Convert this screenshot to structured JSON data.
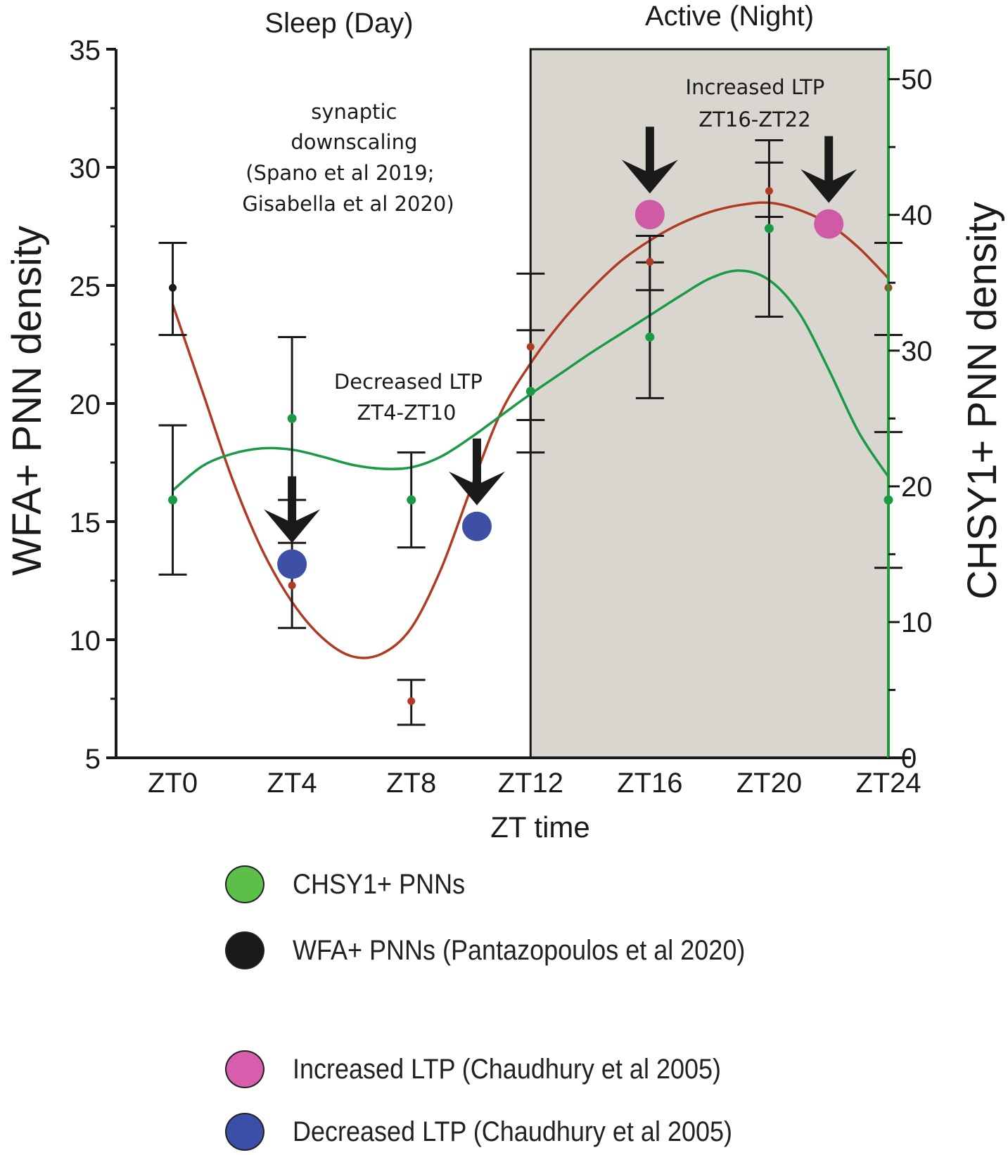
{
  "chart_data": {
    "type": "scatter",
    "period_labels": {
      "day": "Sleep (Day)",
      "night": "Active (Night)"
    },
    "xlabel": "ZT time",
    "ylabel_left": "WFA+ PNN density",
    "ylabel_right": "CHSY1+ PNN density",
    "categories": [
      "ZT0",
      "ZT4",
      "ZT8",
      "ZT12",
      "ZT16",
      "ZT20",
      "ZT24"
    ],
    "x_values": [
      0,
      4,
      8,
      12,
      16,
      20,
      24
    ],
    "xlim": [
      -1.9,
      24
    ],
    "ylim_left": [
      5,
      35
    ],
    "yticks_left": [
      5,
      10,
      15,
      20,
      25,
      30,
      35
    ],
    "ylim_right": [
      0,
      52
    ],
    "yticks_right": [
      0,
      10,
      20,
      30,
      40,
      50
    ],
    "shaded_region": {
      "from": 12,
      "to": 24
    },
    "series": [
      {
        "name": "WFA+ PNNs",
        "axis": "left",
        "color": "#b13a22",
        "points": [
          {
            "x": 0,
            "y": 24.9,
            "lo": 22.9,
            "hi": 26.8
          },
          {
            "x": 4,
            "y": 12.3,
            "lo": 10.5,
            "hi": 14.1
          },
          {
            "x": 8,
            "y": 7.4,
            "lo": 6.4,
            "hi": 8.3
          },
          {
            "x": 12,
            "y": 22.4,
            "lo": 19.3,
            "hi": 25.5
          },
          {
            "x": 16,
            "y": 26.0,
            "lo": 24.8,
            "hi": 27.1
          },
          {
            "x": 20,
            "y": 29.0,
            "lo": 27.9,
            "hi": 30.2
          },
          {
            "x": 24,
            "y": 24.9,
            "lo": 22.9,
            "hi": 26.8
          }
        ],
        "fit_curve": [
          [
            0,
            24.2
          ],
          [
            1,
            20.5
          ],
          [
            2,
            16.8
          ],
          [
            3,
            13.8
          ],
          [
            4,
            11.6
          ],
          [
            5,
            10.1
          ],
          [
            6,
            9.3
          ],
          [
            7,
            9.4
          ],
          [
            8,
            10.5
          ],
          [
            9,
            13.0
          ],
          [
            10,
            16.4
          ],
          [
            11,
            19.6
          ],
          [
            12,
            21.7
          ],
          [
            13,
            23.4
          ],
          [
            14,
            24.8
          ],
          [
            15,
            26.0
          ],
          [
            16,
            26.9
          ],
          [
            17,
            27.6
          ],
          [
            18,
            28.1
          ],
          [
            19,
            28.4
          ],
          [
            20,
            28.5
          ],
          [
            21,
            28.2
          ],
          [
            22,
            27.6
          ],
          [
            23,
            26.6
          ],
          [
            24,
            25.3
          ]
        ]
      },
      {
        "name": "CHSY1+ PNNs",
        "axis": "right",
        "color": "#1a9a46",
        "points": [
          {
            "x": 0,
            "y": 19.0,
            "lo": 13.5,
            "hi": 24.5
          },
          {
            "x": 4,
            "y": 25.0,
            "lo": 19.0,
            "hi": 31.0
          },
          {
            "x": 8,
            "y": 19.0,
            "lo": 15.5,
            "hi": 22.5
          },
          {
            "x": 12,
            "y": 27.0,
            "lo": 22.5,
            "hi": 31.5
          },
          {
            "x": 16,
            "y": 31.0,
            "lo": 26.5,
            "hi": 36.5
          },
          {
            "x": 20,
            "y": 39.0,
            "lo": 32.5,
            "hi": 45.5
          },
          {
            "x": 24,
            "y": 19.0,
            "lo": 14.0,
            "hi": 24.0
          }
        ],
        "fit_curve": [
          [
            0,
            19.7
          ],
          [
            1,
            21.5
          ],
          [
            2,
            22.4
          ],
          [
            3,
            22.8
          ],
          [
            4,
            22.7
          ],
          [
            5,
            22.2
          ],
          [
            6,
            21.6
          ],
          [
            7,
            21.3
          ],
          [
            8,
            21.4
          ],
          [
            9,
            22.2
          ],
          [
            10,
            23.6
          ],
          [
            11,
            25.2
          ],
          [
            12,
            26.8
          ],
          [
            13,
            28.3
          ],
          [
            14,
            29.8
          ],
          [
            15,
            31.2
          ],
          [
            16,
            32.6
          ],
          [
            17,
            34.0
          ],
          [
            18,
            35.3
          ],
          [
            19,
            35.9
          ],
          [
            20,
            35.2
          ],
          [
            21,
            32.8
          ],
          [
            22,
            28.6
          ],
          [
            23,
            24.0
          ],
          [
            24,
            20.7
          ]
        ]
      }
    ],
    "ltp_markers": [
      {
        "type": "decreased",
        "x": 4,
        "y": 13.2,
        "color": "#3e4fa6"
      },
      {
        "type": "decreased",
        "x": 10.2,
        "y": 14.8,
        "color": "#3e4fa6"
      },
      {
        "type": "increased",
        "x": 16,
        "y": 28.0,
        "color": "#cf5aa6"
      },
      {
        "type": "increased",
        "x": 22,
        "y": 27.6,
        "color": "#cf5aa6"
      }
    ],
    "annotations": {
      "downscaling": [
        "synaptic",
        "downscaling",
        "(Spano et al 2019;",
        "Gisabella et al 2020)"
      ],
      "decreased_ltp": [
        "Decreased LTP",
        "ZT4-ZT10"
      ],
      "increased_ltp": [
        "Increased LTP",
        "ZT16-ZT22"
      ]
    },
    "legend": [
      {
        "label": "CHSY1+ PNNs",
        "color": "#5bbf48"
      },
      {
        "label": "WFA+ PNNs (Pantazopoulos et al 2020)",
        "color": "#1a1a1a"
      },
      {
        "label": "Increased LTP (Chaudhury et al 2005)",
        "color": "#d75eac"
      },
      {
        "label": "Decreased LTP (Chaudhury et al 2005)",
        "color": "#3b4ea8"
      }
    ]
  }
}
